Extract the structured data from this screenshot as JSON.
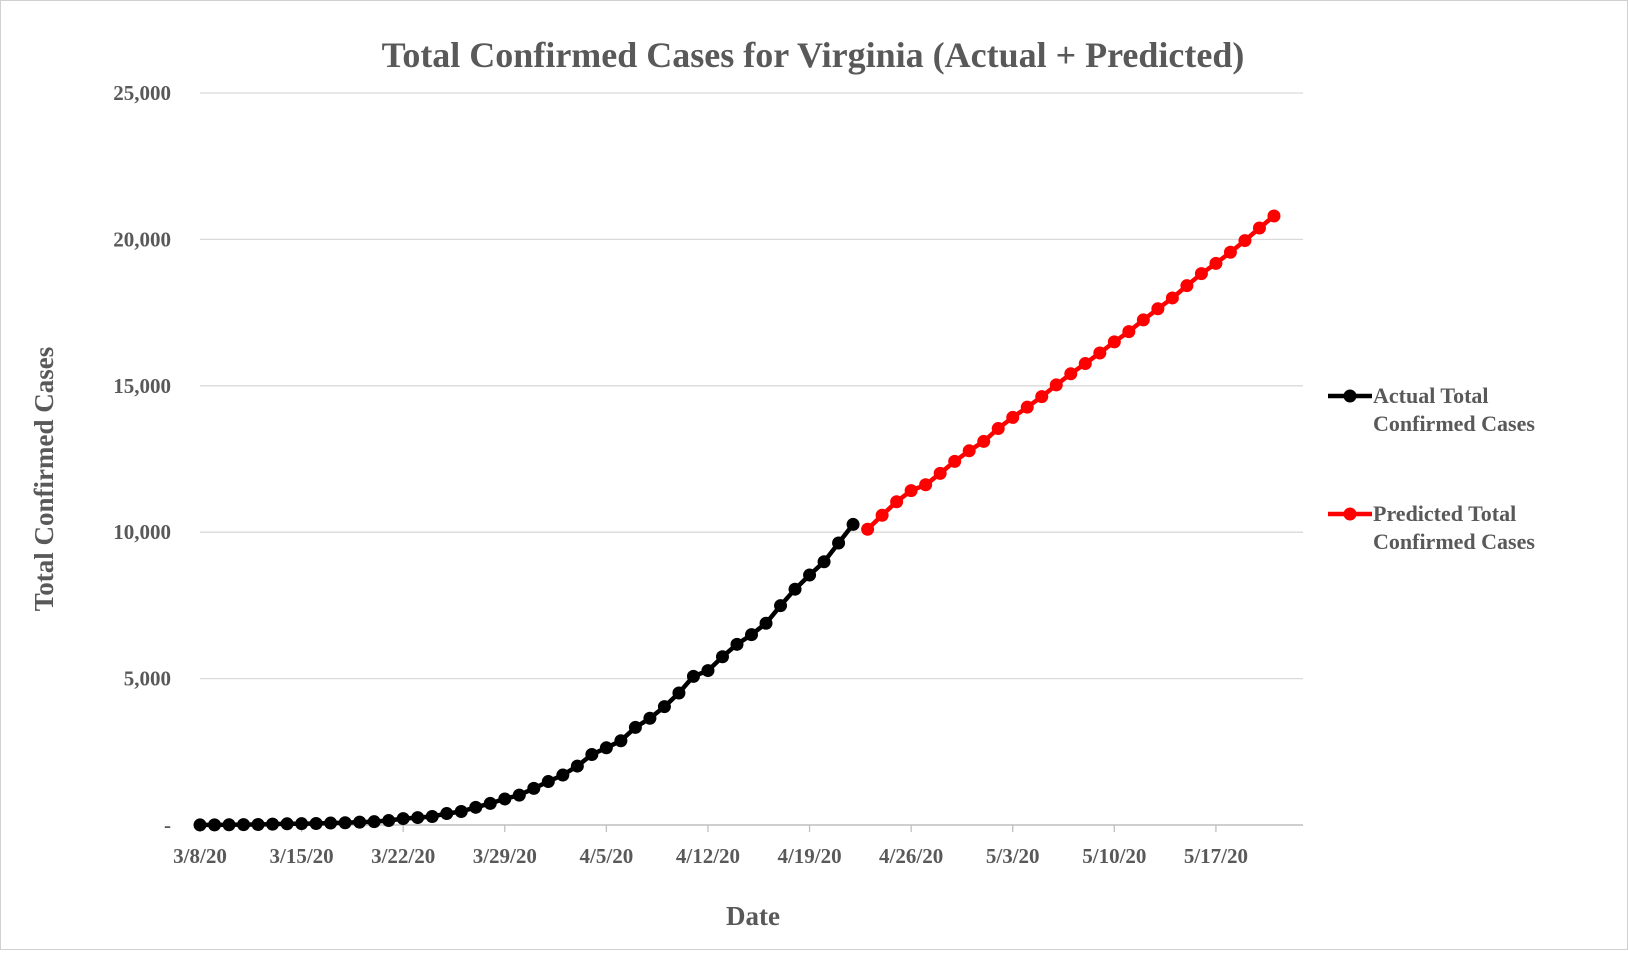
{
  "chart_data": {
    "type": "line",
    "title": "Total Confirmed Cases for Virginia (Actual + Predicted)",
    "xlabel": "Date",
    "ylabel": "Total Confirmed Cases",
    "x_tick_labels": [
      "3/8/20",
      "3/15/20",
      "3/22/20",
      "3/29/20",
      "4/5/20",
      "4/12/20",
      "4/19/20",
      "4/26/20",
      "5/3/20",
      "5/10/20",
      "5/17/20"
    ],
    "y_tick_labels": [
      "-",
      "5,000",
      "10,000",
      "15,000",
      "20,000",
      "25,000"
    ],
    "y_ticks": [
      0,
      5000,
      10000,
      15000,
      20000,
      25000
    ],
    "ylim": [
      0,
      25000
    ],
    "xlim": [
      "2020-03-08",
      "2020-05-23"
    ],
    "grid": "horizontal",
    "legend_position": "right",
    "series": [
      {
        "name": "Actual Total Confirmed Cases",
        "color": "#000000",
        "start_date": "2020-03-08",
        "values": [
          3,
          5,
          9,
          12,
          17,
          30,
          41,
          45,
          51,
          67,
          77,
          99,
          114,
          152,
          219,
          254,
          290,
          391,
          460,
          604,
          739,
          890,
          1020,
          1250,
          1484,
          1706,
          2012,
          2407,
          2637,
          2878,
          3333,
          3645,
          4042,
          4509,
          5077,
          5274,
          5747,
          6171,
          6500,
          6889,
          7491,
          8053,
          8537,
          8990,
          9630,
          10266
        ]
      },
      {
        "name": "Predicted Total Confirmed Cases",
        "color": "#ff0000",
        "start_date": "2020-04-23",
        "values": [
          10100,
          10580,
          11040,
          11420,
          11620,
          12010,
          12420,
          12780,
          13100,
          13540,
          13920,
          14270,
          14630,
          15030,
          15410,
          15760,
          16120,
          16500,
          16850,
          17250,
          17630,
          18000,
          18420,
          18830,
          19180,
          19560,
          19960,
          20390,
          20800
        ]
      }
    ]
  }
}
